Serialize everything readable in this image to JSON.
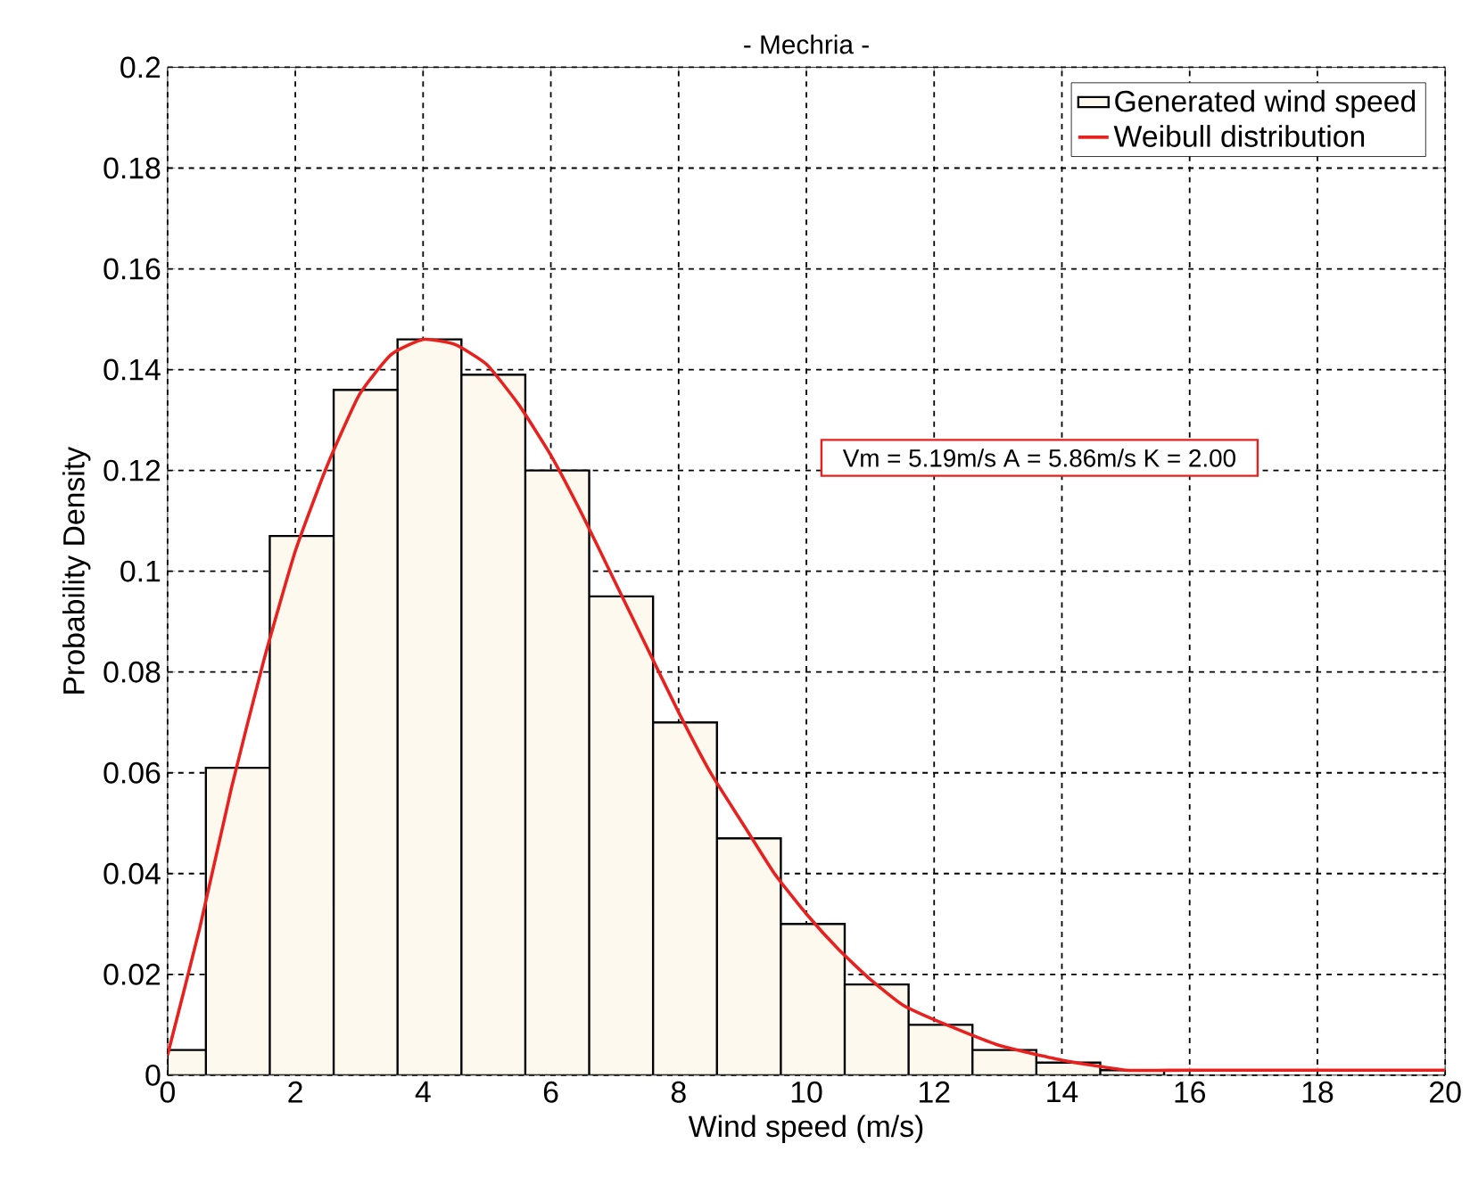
{
  "chart_data": {
    "type": "histogram",
    "title": "- Mechria -",
    "xlabel": "Wind speed (m/s)",
    "ylabel": "Probability Density",
    "annotations": [
      "Vm = 5.19m/s A = 5.86m/s K = 2.00"
    ],
    "xlim": [
      0,
      20
    ],
    "ylim": [
      0,
      0.2
    ],
    "xticks": [
      0,
      2,
      4,
      6,
      8,
      10,
      12,
      14,
      16,
      18,
      20
    ],
    "yticks": [
      0,
      0.02,
      0.04,
      0.06,
      0.08,
      0.1,
      0.12,
      0.14,
      0.16,
      0.18,
      0.2
    ],
    "grid": true,
    "legend": "top right",
    "marker": "none",
    "series": [
      {
        "name": "Generated wind speed",
        "type": "histogram",
        "color": "#fdf9ee",
        "bins": [
          0,
          0.6,
          1.6,
          2.6,
          3.6,
          4.6,
          5.6,
          6.6,
          7.6,
          8.6,
          9.6,
          10.6,
          11.6,
          12.6,
          13.6,
          14.6,
          15.6
        ],
        "values": [
          0.005,
          0.061,
          0.107,
          0.136,
          0.146,
          0.139,
          0.12,
          0.095,
          0.07,
          0.047,
          0.03,
          0.018,
          0.01,
          0.005,
          0.0025,
          0.001
        ]
      },
      {
        "name": "Weibull distribution",
        "type": "line",
        "line_style": "solid",
        "color": "#e8201e",
        "x": [
          0,
          0.5,
          1,
          1.5,
          2,
          2.5,
          3,
          3.5,
          4,
          4.5,
          5,
          5.5,
          6,
          6.5,
          7,
          7.5,
          8,
          8.5,
          9,
          9.5,
          10,
          10.5,
          11,
          11.5,
          12,
          13,
          14,
          15,
          16,
          18,
          20
        ],
        "values": [
          0.004,
          0.029,
          0.057,
          0.082,
          0.104,
          0.121,
          0.135,
          0.143,
          0.146,
          0.145,
          0.141,
          0.133,
          0.123,
          0.111,
          0.098,
          0.085,
          0.072,
          0.06,
          0.05,
          0.04,
          0.032,
          0.025,
          0.019,
          0.014,
          0.011,
          0.006,
          0.003,
          0.001,
          0.001,
          0.001,
          0.001
        ]
      }
    ]
  }
}
